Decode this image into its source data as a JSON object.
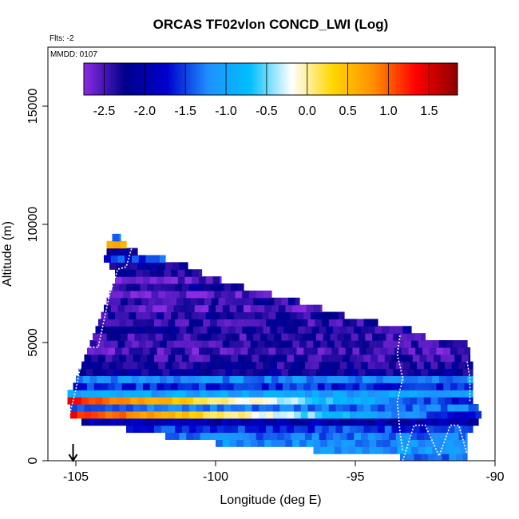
{
  "chart_data": {
    "type": "heatmap",
    "title": "ORCAS TF02vlon CONCD_LWI (Log)",
    "xlabel": "Longitude (deg E)",
    "ylabel": "Altitude (m)",
    "xlim": [
      -106,
      -90
    ],
    "ylim": [
      0,
      17500
    ],
    "x_ticks": [
      -105,
      -100,
      -95,
      -90
    ],
    "y_ticks": [
      0,
      5000,
      10000,
      15000
    ],
    "notes": {
      "flights": "Flts: -2",
      "date": "MMDD: 0107"
    },
    "colorbar": {
      "range": [
        -2.75,
        1.85
      ],
      "ticks": [
        -2.5,
        -2.0,
        -1.5,
        -1.0,
        -0.5,
        0.0,
        0.5,
        1.0,
        1.5
      ],
      "tick_labels": [
        "-2.5",
        "-2.0",
        "-1.5",
        "-1.0",
        "-0.5",
        "0.0",
        "0.5",
        "1.0",
        "1.5"
      ],
      "colors": [
        "#8a2be2",
        "#00008b",
        "#0000cd",
        "#1e90ff",
        "#00bfff",
        "#ffffff",
        "#ffd700",
        "#ff8c00",
        "#ff0000",
        "#8b0000"
      ]
    },
    "cell_size": {
      "dlon": 0.25,
      "dalt": 300
    },
    "rows": [
      {
        "alt_range": [
          0,
          300
        ],
        "lon_range": [
          -93.4,
          -91.0
        ],
        "value": -1.3
      },
      {
        "alt_range": [
          300,
          600
        ],
        "lon_range": [
          -96.5,
          -91.0
        ],
        "value": -1.1
      },
      {
        "alt_range": [
          600,
          900
        ],
        "lon_range": [
          -100.0,
          -91.0
        ],
        "value": -1.2
      },
      {
        "alt_range": [
          900,
          1200
        ],
        "lon_range": [
          -101.8,
          -91.0
        ],
        "value": -1.3
      },
      {
        "alt_range": [
          1200,
          1500
        ],
        "lon_range": [
          -103.2,
          -90.8
        ],
        "value": -1.5
      },
      {
        "alt_range": [
          1500,
          1800
        ],
        "lon_range": [
          -104.8,
          -90.6
        ],
        "value": -2.0
      },
      {
        "alt_range": [
          1800,
          2100
        ],
        "lon_range": [
          -105.2,
          -90.5
        ],
        "value": 0.8,
        "trend": "hot"
      },
      {
        "alt_range": [
          2100,
          2400
        ],
        "lon_range": [
          -105.2,
          -90.6
        ],
        "value": -1.3
      },
      {
        "alt_range": [
          2400,
          2700
        ],
        "lon_range": [
          -105.3,
          -90.8
        ],
        "value": 0.9,
        "trend": "hot"
      },
      {
        "alt_range": [
          2700,
          3000
        ],
        "lon_range": [
          -105.3,
          -90.8
        ],
        "value": -1.0
      },
      {
        "alt_range": [
          3000,
          3300
        ],
        "lon_range": [
          -105.1,
          -90.8
        ],
        "value": -1.6
      },
      {
        "alt_range": [
          3300,
          3600
        ],
        "lon_range": [
          -105.0,
          -90.8
        ],
        "value": -1.2
      },
      {
        "alt_range": [
          3600,
          3900
        ],
        "lon_range": [
          -104.9,
          -90.8
        ],
        "value": -2.2
      },
      {
        "alt_range": [
          3900,
          4200
        ],
        "lon_range": [
          -104.8,
          -90.8
        ],
        "value": -2.3
      },
      {
        "alt_range": [
          4200,
          4500
        ],
        "lon_range": [
          -104.7,
          -90.9
        ],
        "value": -2.4
      },
      {
        "alt_range": [
          4500,
          4800
        ],
        "lon_range": [
          -104.6,
          -90.9
        ],
        "value": -2.5
      },
      {
        "alt_range": [
          4800,
          5100
        ],
        "lon_range": [
          -104.5,
          -91.0
        ],
        "value": -2.4
      },
      {
        "alt_range": [
          5100,
          5400
        ],
        "lon_range": [
          -104.4,
          -92.5
        ],
        "value": -2.4
      },
      {
        "alt_range": [
          5400,
          5700
        ],
        "lon_range": [
          -104.3,
          -93.0
        ],
        "value": -2.3
      },
      {
        "alt_range": [
          5700,
          6000
        ],
        "lon_range": [
          -104.2,
          -94.2
        ],
        "value": -2.4
      },
      {
        "alt_range": [
          6000,
          6300
        ],
        "lon_range": [
          -104.1,
          -95.4
        ],
        "value": -2.3
      },
      {
        "alt_range": [
          6300,
          6600
        ],
        "lon_range": [
          -104.0,
          -96.2
        ],
        "value": -2.5
      },
      {
        "alt_range": [
          6600,
          6900
        ],
        "lon_range": [
          -103.9,
          -97.0
        ],
        "value": -2.4
      },
      {
        "alt_range": [
          6900,
          7200
        ],
        "lon_range": [
          -103.8,
          -98.0
        ],
        "value": -2.6
      },
      {
        "alt_range": [
          7200,
          7500
        ],
        "lon_range": [
          -103.7,
          -99.0
        ],
        "value": -2.3
      },
      {
        "alt_range": [
          7500,
          7800
        ],
        "lon_range": [
          -103.6,
          -99.8
        ],
        "value": -2.6
      },
      {
        "alt_range": [
          7800,
          8100
        ],
        "lon_range": [
          -103.6,
          -100.5
        ],
        "value": -2.3
      },
      {
        "alt_range": [
          8100,
          8400
        ],
        "lon_range": [
          -103.8,
          -101.0
        ],
        "value": -2.2
      },
      {
        "alt_range": [
          8400,
          8700
        ],
        "lon_range": [
          -104.0,
          -101.8
        ],
        "value": -1.5
      },
      {
        "alt_range": [
          8700,
          9000
        ],
        "lon_range": [
          -103.9,
          -102.8
        ],
        "value": -2.1
      },
      {
        "alt_range": [
          9000,
          9300
        ],
        "lon_range": [
          -103.9,
          -103.2
        ],
        "value": 0.5
      },
      {
        "alt_range": [
          9300,
          9600
        ],
        "lon_range": [
          -103.7,
          -103.4
        ],
        "value": -1.4
      }
    ],
    "flight_track_marker": {
      "lon": -105.1,
      "label": "down-arrow"
    }
  }
}
